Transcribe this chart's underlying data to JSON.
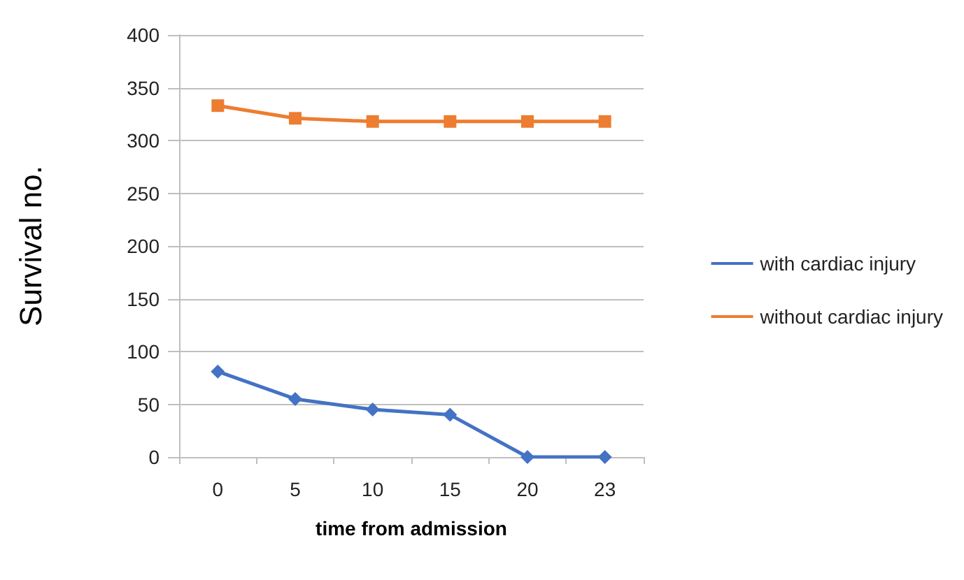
{
  "chart_data": {
    "type": "line",
    "xlabel": "time from admission",
    "ylabel": "Survival no.",
    "categories": [
      "0",
      "5",
      "10",
      "15",
      "20",
      "23"
    ],
    "series": [
      {
        "name": "with cardiac injury",
        "color": "#4472c4",
        "marker": "diamond",
        "values": [
          81,
          55,
          45,
          40,
          0,
          0
        ]
      },
      {
        "name": "without cardiac injury",
        "color": "#ed7d31",
        "marker": "square",
        "values": [
          333,
          321,
          318,
          318,
          318,
          318
        ]
      }
    ],
    "ylim": [
      0,
      400
    ],
    "yticks": [
      0,
      50,
      100,
      150,
      200,
      250,
      300,
      350,
      400
    ],
    "grid": "y",
    "legend": "right"
  }
}
